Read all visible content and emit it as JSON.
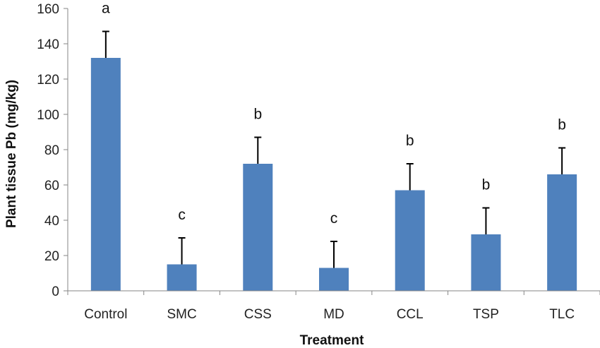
{
  "chart_data": {
    "type": "bar",
    "title": "",
    "xlabel": "Treatment",
    "ylabel": "Plant tissue Pb (mg/kg)",
    "ylim": [
      0,
      160
    ],
    "yticks": [
      0,
      20,
      40,
      60,
      80,
      100,
      120,
      140,
      160
    ],
    "categories": [
      "Control",
      "SMC",
      "CSS",
      "MD",
      "CCL",
      "TSP",
      "TLC"
    ],
    "values": [
      132,
      15,
      72,
      13,
      57,
      32,
      66
    ],
    "error_bars": [
      15,
      15,
      15,
      15,
      15,
      15,
      15
    ],
    "annotations": [
      "a",
      "c",
      "b",
      "c",
      "b",
      "b",
      "b"
    ],
    "colors": {
      "bar": "#4f81bd",
      "error_bar": "#000000",
      "axis": "#868686"
    },
    "grid": false
  }
}
